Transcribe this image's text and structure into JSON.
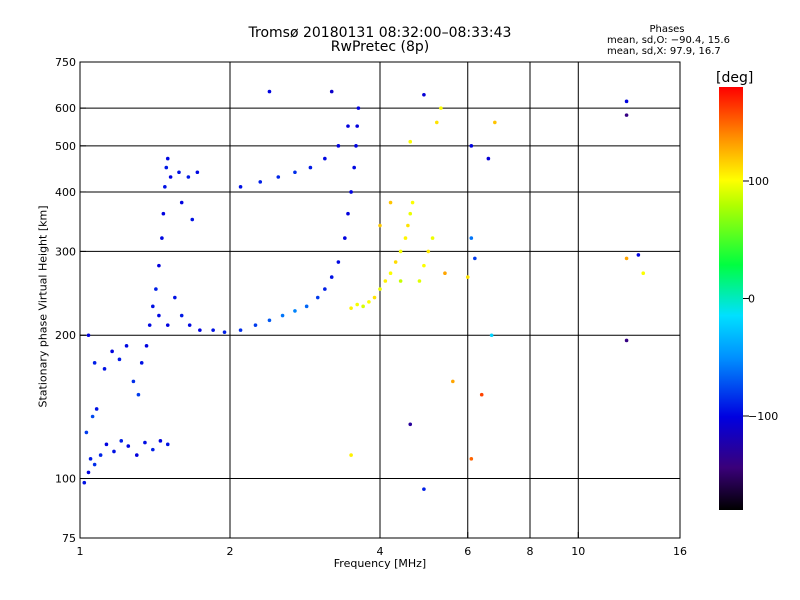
{
  "title_line1": "Tromsø 20180131 08:32:00–08:33:43",
  "title_line2": "RwPretec (8p)",
  "stats": {
    "heading": "Phases",
    "line_o": "mean, sd,O: −90.4, 15.6",
    "line_x": "mean, sd,X:  97.9, 16.7"
  },
  "colorbar": {
    "label": "[deg]",
    "min": -180,
    "max": 180,
    "ticks": [
      {
        "value": 100,
        "label": "100"
      },
      {
        "value": 0,
        "label": "0"
      },
      {
        "value": -100,
        "label": "−100"
      }
    ]
  },
  "chart_data": {
    "type": "scatter",
    "title": "Tromsø 20180131 08:32:00–08:33:43 RwPretec (8p)",
    "xlabel": "Frequency [MHz]",
    "ylabel": "Stationary phase Virtual Height [km]",
    "xscale": "log",
    "yscale": "log",
    "xlim": [
      1,
      16
    ],
    "ylim": [
      75,
      750
    ],
    "x_ticks": [
      {
        "value": 1,
        "label": "1"
      },
      {
        "value": 2,
        "label": "2"
      },
      {
        "value": 4,
        "label": "4"
      },
      {
        "value": 6,
        "label": "6"
      },
      {
        "value": 8,
        "label": "8"
      },
      {
        "value": 10,
        "label": "10"
      },
      {
        "value": 16,
        "label": "16"
      }
    ],
    "y_ticks": [
      {
        "value": 75,
        "label": "75"
      },
      {
        "value": 100,
        "label": "100"
      },
      {
        "value": 200,
        "label": "200"
      },
      {
        "value": 300,
        "label": "300"
      },
      {
        "value": 400,
        "label": "400"
      },
      {
        "value": 500,
        "label": "500"
      },
      {
        "value": 600,
        "label": "600"
      },
      {
        "value": 750,
        "label": "750"
      }
    ],
    "gridlines_x": [
      2,
      4,
      6,
      8,
      10
    ],
    "gridlines_y": [
      100,
      200,
      300,
      400,
      500,
      600
    ],
    "grid": true,
    "series": [
      {
        "name": "O",
        "color_by": "phase_deg",
        "points": [
          {
            "x": 1.02,
            "y": 98,
            "phase": -95
          },
          {
            "x": 1.04,
            "y": 103,
            "phase": -100
          },
          {
            "x": 1.05,
            "y": 110,
            "phase": -92
          },
          {
            "x": 1.07,
            "y": 107,
            "phase": -85
          },
          {
            "x": 1.1,
            "y": 112,
            "phase": -88
          },
          {
            "x": 1.13,
            "y": 118,
            "phase": -100
          },
          {
            "x": 1.17,
            "y": 114,
            "phase": -95
          },
          {
            "x": 1.21,
            "y": 120,
            "phase": -90
          },
          {
            "x": 1.25,
            "y": 117,
            "phase": -98
          },
          {
            "x": 1.3,
            "y": 112,
            "phase": -102
          },
          {
            "x": 1.35,
            "y": 119,
            "phase": -96
          },
          {
            "x": 1.4,
            "y": 115,
            "phase": -90
          },
          {
            "x": 1.45,
            "y": 120,
            "phase": -100
          },
          {
            "x": 1.5,
            "y": 118,
            "phase": -95
          },
          {
            "x": 1.03,
            "y": 125,
            "phase": -80
          },
          {
            "x": 1.06,
            "y": 135,
            "phase": -75
          },
          {
            "x": 1.08,
            "y": 140,
            "phase": -95
          },
          {
            "x": 1.04,
            "y": 200,
            "phase": -100
          },
          {
            "x": 1.07,
            "y": 175,
            "phase": -90
          },
          {
            "x": 1.12,
            "y": 170,
            "phase": -95
          },
          {
            "x": 1.16,
            "y": 185,
            "phase": -100
          },
          {
            "x": 1.2,
            "y": 178,
            "phase": -92
          },
          {
            "x": 1.24,
            "y": 190,
            "phase": -98
          },
          {
            "x": 1.28,
            "y": 160,
            "phase": -85
          },
          {
            "x": 1.31,
            "y": 150,
            "phase": -80
          },
          {
            "x": 1.33,
            "y": 175,
            "phase": -95
          },
          {
            "x": 1.36,
            "y": 190,
            "phase": -100
          },
          {
            "x": 1.38,
            "y": 210,
            "phase": -98
          },
          {
            "x": 1.4,
            "y": 230,
            "phase": -95
          },
          {
            "x": 1.42,
            "y": 250,
            "phase": -90
          },
          {
            "x": 1.44,
            "y": 280,
            "phase": -102
          },
          {
            "x": 1.46,
            "y": 320,
            "phase": -98
          },
          {
            "x": 1.47,
            "y": 360,
            "phase": -100
          },
          {
            "x": 1.48,
            "y": 410,
            "phase": -95
          },
          {
            "x": 1.49,
            "y": 450,
            "phase": -92
          },
          {
            "x": 1.5,
            "y": 470,
            "phase": -98
          },
          {
            "x": 1.52,
            "y": 430,
            "phase": -100
          },
          {
            "x": 1.58,
            "y": 440,
            "phase": -95
          },
          {
            "x": 1.65,
            "y": 430,
            "phase": -92
          },
          {
            "x": 1.72,
            "y": 440,
            "phase": -98
          },
          {
            "x": 1.6,
            "y": 380,
            "phase": -100
          },
          {
            "x": 1.68,
            "y": 350,
            "phase": -95
          },
          {
            "x": 1.44,
            "y": 220,
            "phase": -98
          },
          {
            "x": 1.5,
            "y": 210,
            "phase": -100
          },
          {
            "x": 1.55,
            "y": 240,
            "phase": -95
          },
          {
            "x": 1.6,
            "y": 220,
            "phase": -92
          },
          {
            "x": 1.66,
            "y": 210,
            "phase": -98
          },
          {
            "x": 1.74,
            "y": 205,
            "phase": -100
          },
          {
            "x": 1.85,
            "y": 205,
            "phase": -95
          },
          {
            "x": 1.95,
            "y": 203,
            "phase": -90
          },
          {
            "x": 2.1,
            "y": 205,
            "phase": -85
          },
          {
            "x": 2.25,
            "y": 210,
            "phase": -80
          },
          {
            "x": 2.4,
            "y": 215,
            "phase": -70
          },
          {
            "x": 2.55,
            "y": 220,
            "phase": -60
          },
          {
            "x": 2.7,
            "y": 225,
            "phase": -55
          },
          {
            "x": 2.85,
            "y": 230,
            "phase": -65
          },
          {
            "x": 3.0,
            "y": 240,
            "phase": -80
          },
          {
            "x": 3.1,
            "y": 250,
            "phase": -90
          },
          {
            "x": 3.2,
            "y": 265,
            "phase": -95
          },
          {
            "x": 3.3,
            "y": 285,
            "phase": -98
          },
          {
            "x": 3.4,
            "y": 320,
            "phase": -100
          },
          {
            "x": 3.45,
            "y": 360,
            "phase": -102
          },
          {
            "x": 3.5,
            "y": 400,
            "phase": -100
          },
          {
            "x": 3.55,
            "y": 450,
            "phase": -98
          },
          {
            "x": 3.58,
            "y": 500,
            "phase": -100
          },
          {
            "x": 3.6,
            "y": 550,
            "phase": -102
          },
          {
            "x": 3.62,
            "y": 600,
            "phase": -100
          },
          {
            "x": 2.1,
            "y": 410,
            "phase": -95
          },
          {
            "x": 2.3,
            "y": 420,
            "phase": -90
          },
          {
            "x": 2.5,
            "y": 430,
            "phase": -88
          },
          {
            "x": 2.7,
            "y": 440,
            "phase": -85
          },
          {
            "x": 2.9,
            "y": 450,
            "phase": -92
          },
          {
            "x": 3.1,
            "y": 470,
            "phase": -98
          },
          {
            "x": 3.3,
            "y": 500,
            "phase": -100
          },
          {
            "x": 3.45,
            "y": 550,
            "phase": -102
          },
          {
            "x": 2.4,
            "y": 650,
            "phase": -100
          },
          {
            "x": 3.2,
            "y": 650,
            "phase": -110
          },
          {
            "x": 4.9,
            "y": 640,
            "phase": -105
          },
          {
            "x": 12.5,
            "y": 620,
            "phase": -100
          },
          {
            "x": 12.5,
            "y": 580,
            "phase": -140
          },
          {
            "x": 6.1,
            "y": 500,
            "phase": -100
          },
          {
            "x": 6.6,
            "y": 470,
            "phase": -105
          },
          {
            "x": 6.1,
            "y": 320,
            "phase": -60
          },
          {
            "x": 6.2,
            "y": 290,
            "phase": -80
          },
          {
            "x": 13.2,
            "y": 295,
            "phase": -100
          },
          {
            "x": 12.5,
            "y": 195,
            "phase": -140
          },
          {
            "x": 6.7,
            "y": 200,
            "phase": -20
          },
          {
            "x": 4.9,
            "y": 95,
            "phase": -90
          },
          {
            "x": 4.6,
            "y": 130,
            "phase": -130
          }
        ]
      },
      {
        "name": "X",
        "color_by": "phase_deg",
        "points": [
          {
            "x": 3.7,
            "y": 230,
            "phase": 90
          },
          {
            "x": 3.8,
            "y": 235,
            "phase": 100
          },
          {
            "x": 3.9,
            "y": 240,
            "phase": 110
          },
          {
            "x": 4.0,
            "y": 250,
            "phase": 95
          },
          {
            "x": 4.1,
            "y": 260,
            "phase": 105
          },
          {
            "x": 4.2,
            "y": 270,
            "phase": 100
          },
          {
            "x": 4.3,
            "y": 285,
            "phase": 112
          },
          {
            "x": 4.4,
            "y": 300,
            "phase": 98
          },
          {
            "x": 4.5,
            "y": 320,
            "phase": 104
          },
          {
            "x": 4.55,
            "y": 340,
            "phase": 110
          },
          {
            "x": 4.6,
            "y": 360,
            "phase": 95
          },
          {
            "x": 4.65,
            "y": 380,
            "phase": 100
          },
          {
            "x": 3.5,
            "y": 228,
            "phase": 105
          },
          {
            "x": 3.6,
            "y": 232,
            "phase": 98
          },
          {
            "x": 4.8,
            "y": 260,
            "phase": 92
          },
          {
            "x": 4.9,
            "y": 280,
            "phase": 100
          },
          {
            "x": 5.0,
            "y": 300,
            "phase": 108
          },
          {
            "x": 5.1,
            "y": 320,
            "phase": 96
          },
          {
            "x": 4.2,
            "y": 380,
            "phase": 120
          },
          {
            "x": 4.0,
            "y": 340,
            "phase": 118
          },
          {
            "x": 4.4,
            "y": 260,
            "phase": 85
          },
          {
            "x": 5.2,
            "y": 560,
            "phase": 110
          },
          {
            "x": 5.3,
            "y": 600,
            "phase": 100
          },
          {
            "x": 6.8,
            "y": 560,
            "phase": 120
          },
          {
            "x": 4.6,
            "y": 510,
            "phase": 100
          },
          {
            "x": 5.4,
            "y": 270,
            "phase": 130
          },
          {
            "x": 6.0,
            "y": 265,
            "phase": 110
          },
          {
            "x": 13.5,
            "y": 270,
            "phase": 100
          },
          {
            "x": 12.5,
            "y": 290,
            "phase": 130
          },
          {
            "x": 5.6,
            "y": 160,
            "phase": 130
          },
          {
            "x": 6.1,
            "y": 110,
            "phase": 150
          },
          {
            "x": 3.5,
            "y": 112,
            "phase": 105
          },
          {
            "x": 6.4,
            "y": 150,
            "phase": 160
          }
        ]
      }
    ]
  }
}
